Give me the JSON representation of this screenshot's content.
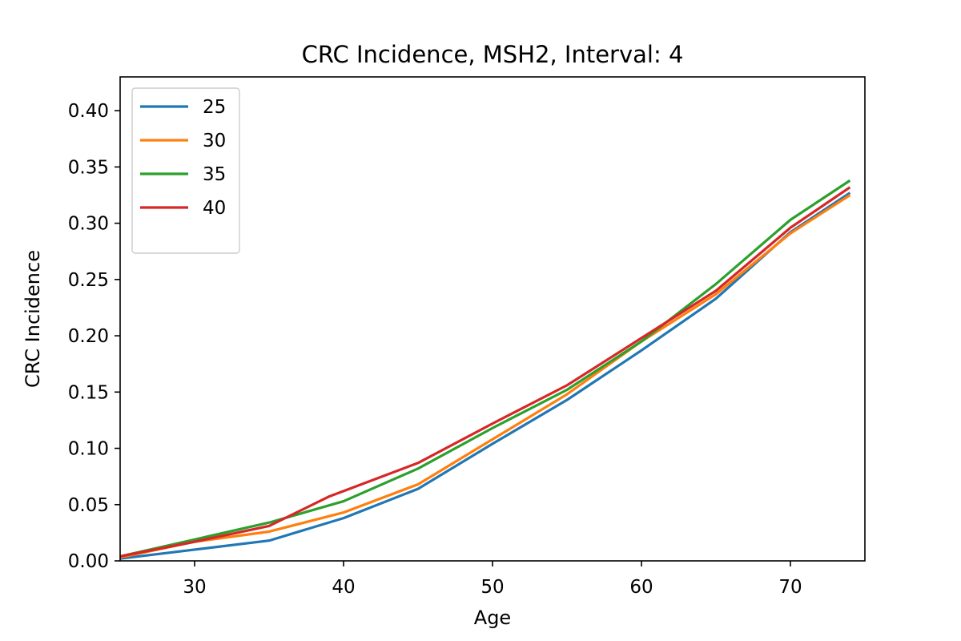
{
  "chart_data": {
    "type": "line",
    "title": "CRC Incidence, MSH2, Interval: 4",
    "xlabel": "Age",
    "ylabel": "CRC Incidence",
    "xlim": [
      25,
      75
    ],
    "ylim": [
      0,
      0.43
    ],
    "xticks": [
      30,
      40,
      50,
      60,
      70
    ],
    "yticks": [
      0.0,
      0.05,
      0.1,
      0.15,
      0.2,
      0.25,
      0.3,
      0.35,
      0.4
    ],
    "xtick_labels": [
      "30",
      "40",
      "50",
      "60",
      "70"
    ],
    "ytick_labels": [
      "0.00",
      "0.05",
      "0.10",
      "0.15",
      "0.20",
      "0.25",
      "0.30",
      "0.35",
      "0.40"
    ],
    "grid": false,
    "legend_position": "top-left",
    "series": [
      {
        "name": "25",
        "color": "#1f77b4",
        "x": [
          25,
          30,
          35,
          40,
          45,
          50,
          55,
          60,
          65,
          70,
          74
        ],
        "y": [
          0.002,
          0.01,
          0.018,
          0.038,
          0.064,
          0.104,
          0.143,
          0.187,
          0.233,
          0.292,
          0.327
        ]
      },
      {
        "name": "30",
        "color": "#ff7f0e",
        "x": [
          25,
          30,
          35,
          40,
          45,
          50,
          55,
          60,
          65,
          70,
          74
        ],
        "y": [
          0.003,
          0.017,
          0.026,
          0.043,
          0.068,
          0.108,
          0.148,
          0.195,
          0.237,
          0.291,
          0.325
        ]
      },
      {
        "name": "35",
        "color": "#2ca02c",
        "x": [
          25,
          29,
          35,
          40,
          45,
          50,
          55,
          60,
          65,
          70,
          74
        ],
        "y": [
          0.004,
          0.016,
          0.034,
          0.053,
          0.082,
          0.118,
          0.152,
          0.195,
          0.246,
          0.303,
          0.338
        ]
      },
      {
        "name": "40",
        "color": "#d62728",
        "x": [
          25,
          30,
          35,
          39,
          40,
          45,
          50,
          55,
          60,
          65,
          70,
          74
        ],
        "y": [
          0.004,
          0.017,
          0.031,
          0.057,
          0.062,
          0.087,
          0.122,
          0.156,
          0.198,
          0.24,
          0.296,
          0.332
        ]
      }
    ]
  }
}
